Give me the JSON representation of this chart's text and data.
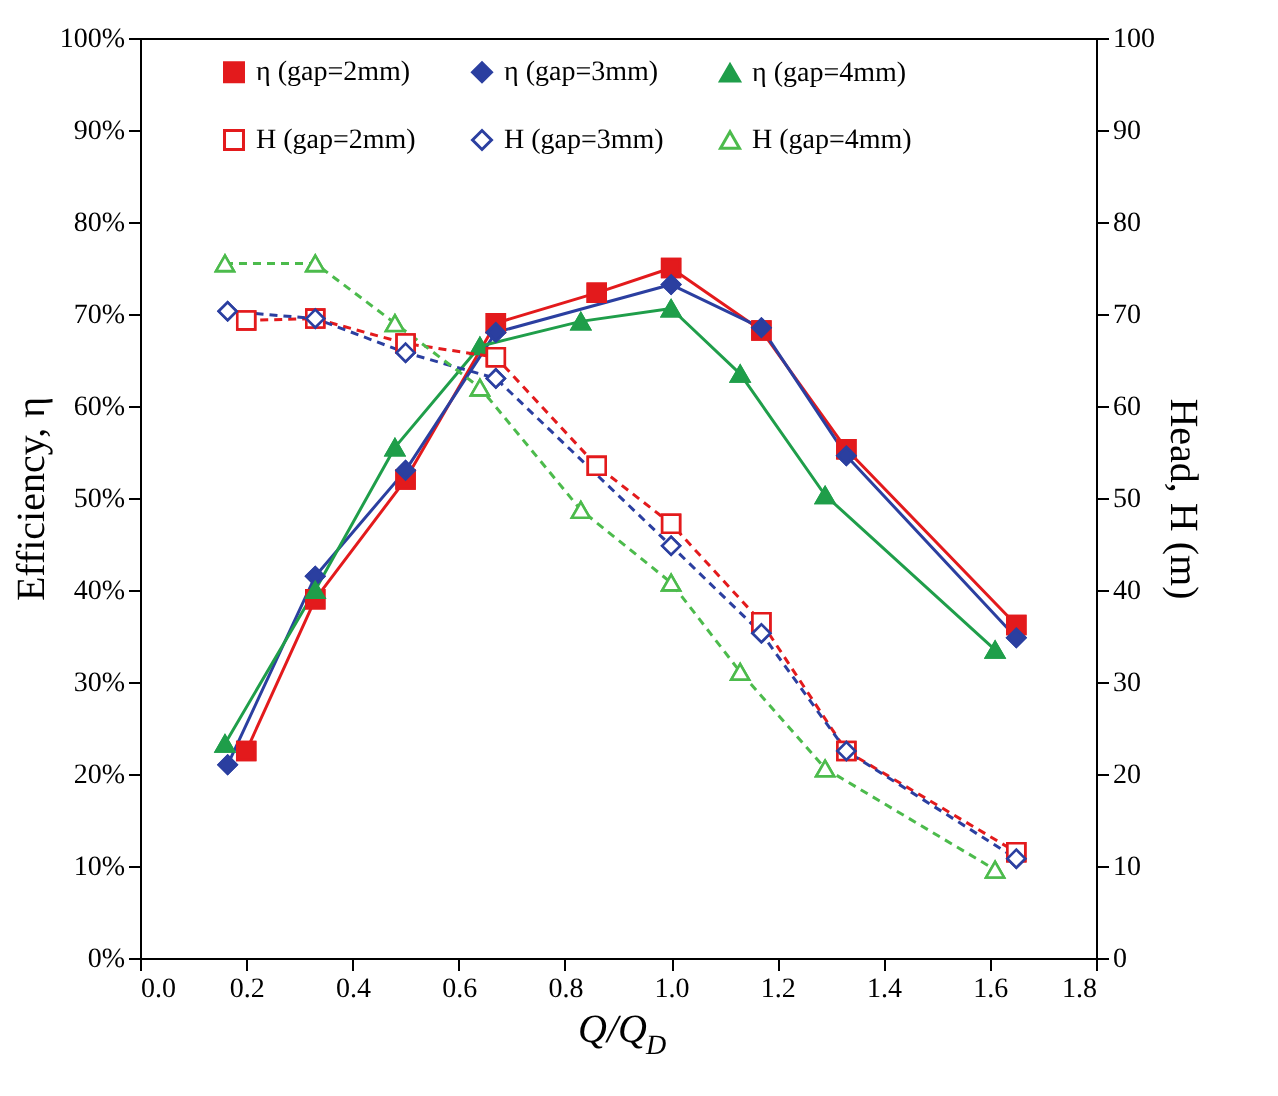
{
  "chart_data": {
    "type": "line",
    "xlabel": "Q/Q$_{D}$",
    "ylabel": "Efficiency, η",
    "y2label": "Head, H (m)",
    "xlim": [
      0,
      1.8
    ],
    "xticks": [
      {
        "value": 0,
        "label": "0.0"
      },
      {
        "value": 0.2,
        "label": "0.2"
      },
      {
        "value": 0.4,
        "label": "0.4"
      },
      {
        "value": 0.6,
        "label": "0.6"
      },
      {
        "value": 0.8,
        "label": "0.8"
      },
      {
        "value": 1,
        "label": "1.0"
      },
      {
        "value": 1.2,
        "label": "1.2"
      },
      {
        "value": 1.4,
        "label": "1.4"
      },
      {
        "value": 1.6,
        "label": "1.6"
      },
      {
        "value": 1.8,
        "label": "1.8"
      }
    ],
    "ylim": [
      0,
      100
    ],
    "yticks": [
      {
        "value": 0,
        "label": "0%"
      },
      {
        "value": 10,
        "label": "10%"
      },
      {
        "value": 20,
        "label": "20%"
      },
      {
        "value": 30,
        "label": "30%"
      },
      {
        "value": 40,
        "label": "40%"
      },
      {
        "value": 50,
        "label": "50%"
      },
      {
        "value": 60,
        "label": "60%"
      },
      {
        "value": 70,
        "label": "70%"
      },
      {
        "value": 80,
        "label": "80%"
      },
      {
        "value": 90,
        "label": "90%"
      },
      {
        "value": 100,
        "label": "100%"
      }
    ],
    "y2lim": [
      0,
      100
    ],
    "y2ticks": [
      0,
      10,
      20,
      30,
      40,
      50,
      60,
      70,
      80,
      90,
      100
    ],
    "grid": false,
    "legend": "top",
    "series": [
      {
        "name": "η (gap=2mm)",
        "color": "#e31a1c",
        "marker": "square",
        "line_style": "solid",
        "x": [
          0.2,
          0.33,
          0.5,
          0.67,
          0.86,
          1.0,
          1.17,
          1.33,
          1.65
        ],
        "values": [
          22.5,
          39,
          52,
          69,
          72.3,
          75,
          68.2,
          55.3,
          36.2
        ]
      },
      {
        "name": "η (gap=3mm)",
        "color": "#2b3fa0",
        "marker": "diamond",
        "line_style": "solid",
        "x": [
          0.165,
          0.33,
          0.5,
          0.67,
          1.0,
          1.17,
          1.33,
          1.65
        ],
        "values": [
          21,
          41.5,
          53,
          68,
          73.2,
          68.5,
          54.6,
          34.8
        ]
      },
      {
        "name": "η (gap=4mm)",
        "color": "#1f9e4a",
        "marker": "triangle",
        "line_style": "solid",
        "x": [
          0.16,
          0.33,
          0.48,
          0.64,
          0.83,
          1.0,
          1.13,
          1.29,
          1.61
        ],
        "values": [
          23.3,
          40,
          55.5,
          66.5,
          69.2,
          70.6,
          63.5,
          50.3,
          33.5
        ]
      },
      {
        "name": "H (gap=2mm)",
        "color": "#e31a1c",
        "marker": "square",
        "line_style": "dashed",
        "axis": "y2",
        "x": [
          0.2,
          0.33,
          0.5,
          0.67,
          0.86,
          1.0,
          1.17,
          1.33,
          1.65
        ],
        "values": [
          69.3,
          69.5,
          66.8,
          65.3,
          53.5,
          47.2,
          36.5,
          22.5,
          11.5
        ]
      },
      {
        "name": "H (gap=3mm)",
        "color": "#2b3fa0",
        "marker": "diamond",
        "line_style": "dashed",
        "axis": "y2",
        "x": [
          0.165,
          0.33,
          0.5,
          0.67,
          1.0,
          1.17,
          1.33,
          1.65
        ],
        "values": [
          70.3,
          69.5,
          65.8,
          63,
          44.8,
          35.3,
          22.5,
          10.8
        ]
      },
      {
        "name": "H (gap=4mm)",
        "color": "#4cbb4c",
        "marker": "triangle",
        "line_style": "dashed",
        "axis": "y2",
        "x": [
          0.16,
          0.33,
          0.48,
          0.64,
          0.83,
          1.0,
          1.13,
          1.29,
          1.61
        ],
        "values": [
          75.5,
          75.5,
          69,
          62,
          48.7,
          40.8,
          31.1,
          20.6,
          9.6
        ]
      }
    ]
  }
}
